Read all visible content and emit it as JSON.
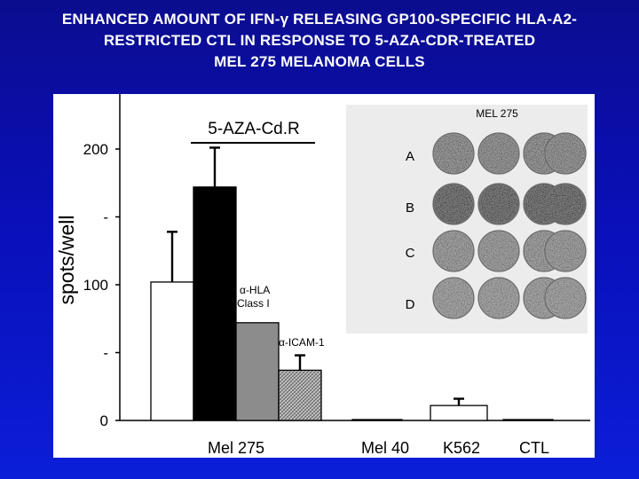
{
  "title": {
    "line1": "ENHANCED AMOUNT OF IFN-γ RELEASING GP100-SPECIFIC HLA-A2-",
    "line2": "RESTRICTED CTL IN RESPONSE TO 5-AZA-CDR-TREATED",
    "line3": "MEL 275 MELANOMA CELLS"
  },
  "chart_data": {
    "type": "bar",
    "ylabel": "spots/well",
    "ylim": [
      0,
      200
    ],
    "yticks": [
      {
        "value": 0,
        "label": "0"
      },
      {
        "value": 50,
        "label": "-"
      },
      {
        "value": 100,
        "label": "100"
      },
      {
        "value": 150,
        "label": "-"
      },
      {
        "value": 200,
        "label": "200"
      }
    ],
    "categories": [
      "Mel 275",
      "Mel 40",
      "K562",
      "CTL"
    ],
    "bars": [
      {
        "category": "Mel 275",
        "value": 102,
        "error": 37,
        "fill": "#ffffff"
      },
      {
        "category": "Mel 275",
        "value": 172,
        "error": 29,
        "fill": "#000000"
      },
      {
        "category": "Mel 275",
        "value": 72,
        "error": 0,
        "fill": "#8c8c8c"
      },
      {
        "category": "Mel 275",
        "value": 37,
        "error": 11,
        "fill": "#b8b8b8"
      },
      {
        "category": "Mel 40",
        "value": 0.5,
        "error": 0,
        "fill": "#ffffff"
      },
      {
        "category": "K562",
        "value": 11,
        "error": 5,
        "fill": "#ffffff"
      },
      {
        "category": "CTL",
        "value": 0.5,
        "error": 0,
        "fill": "#ffffff"
      }
    ],
    "annotations": {
      "aza": "5-AZA-Cd.R",
      "hla_line1": "α-HLA",
      "hla_line2": "Class I",
      "icam": "α-ICAM-1"
    },
    "inset": {
      "title": "MEL 275",
      "rows": [
        "A",
        "B",
        "C",
        "D"
      ]
    }
  }
}
